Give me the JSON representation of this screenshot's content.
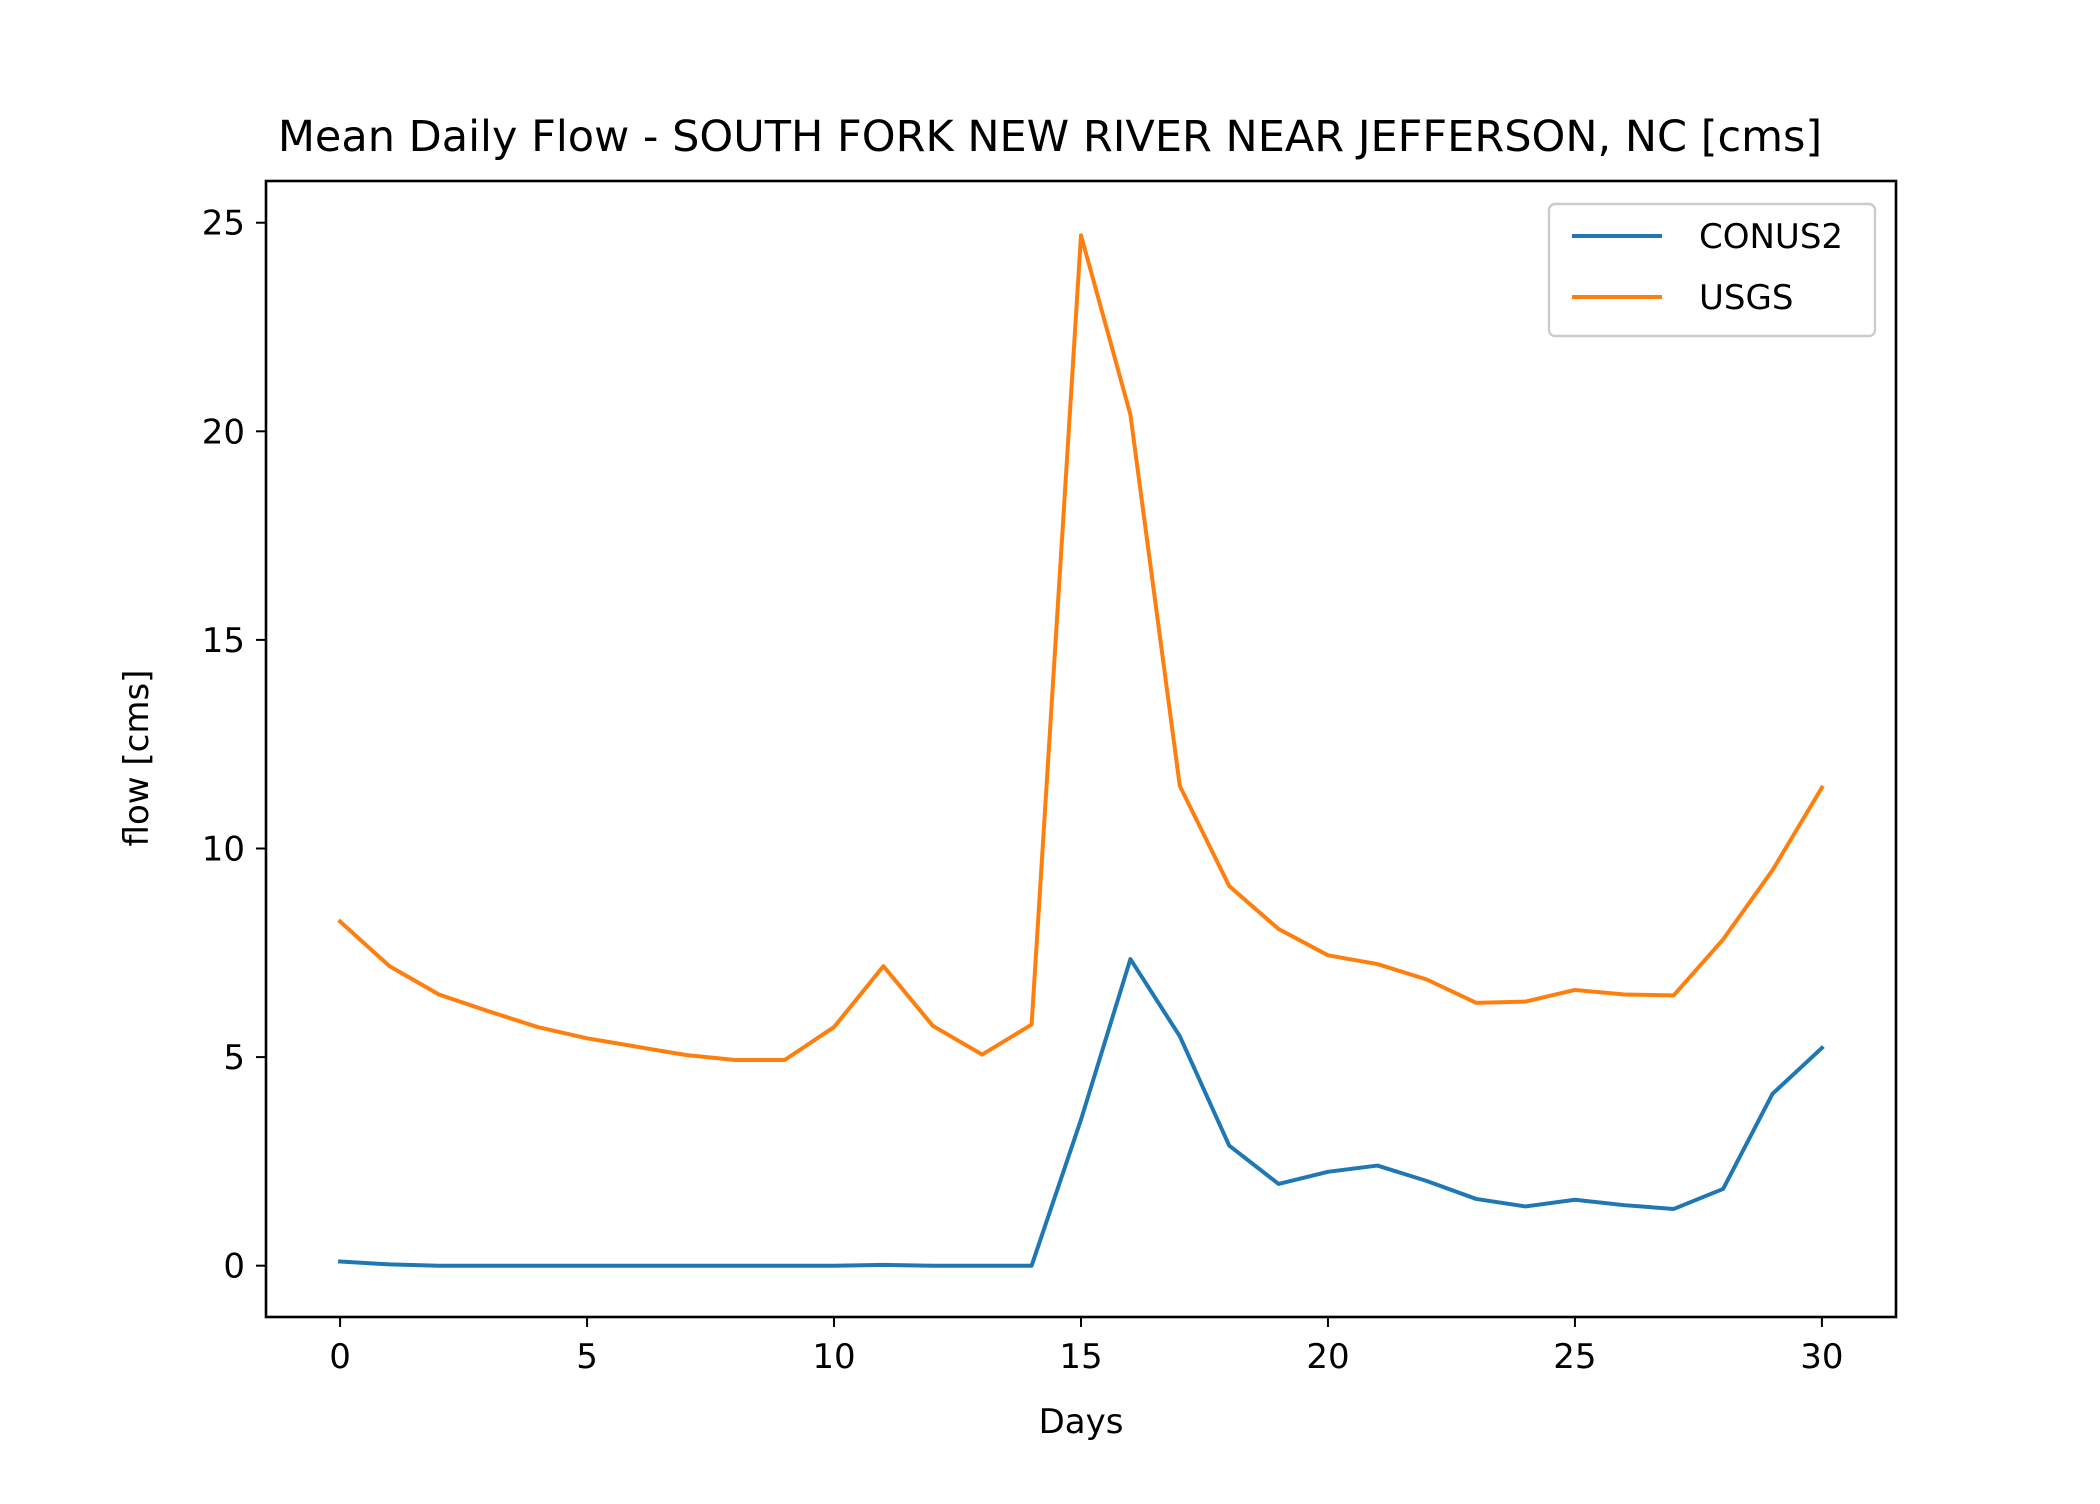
{
  "chart_data": {
    "type": "line",
    "title": "Mean Daily Flow - SOUTH FORK NEW RIVER NEAR JEFFERSON, NC [cms]",
    "xlabel": "Days",
    "ylabel": "flow [cms]",
    "xlim": [
      -1.5,
      31.5
    ],
    "ylim": [
      -1.23,
      26.0
    ],
    "xticks": [
      0,
      5,
      10,
      15,
      20,
      25,
      30
    ],
    "yticks": [
      0,
      5,
      10,
      15,
      20,
      25
    ],
    "grid": false,
    "legend_position": "top-right",
    "x": [
      0,
      1,
      2,
      3,
      4,
      5,
      6,
      7,
      8,
      9,
      10,
      11,
      12,
      13,
      14,
      15,
      16,
      17,
      18,
      19,
      20,
      21,
      22,
      23,
      24,
      25,
      26,
      27,
      28,
      29,
      30
    ],
    "series": [
      {
        "name": "CONUS2",
        "color": "#1f77b4",
        "values": [
          0.1,
          0.03,
          0.0,
          0.0,
          0.0,
          0.0,
          0.0,
          0.0,
          0.0,
          0.0,
          0.0,
          0.02,
          0.0,
          0.0,
          0.0,
          3.5,
          7.35,
          5.5,
          2.88,
          1.96,
          2.25,
          2.4,
          2.03,
          1.6,
          1.42,
          1.58,
          1.45,
          1.36,
          1.84,
          4.12,
          5.22
        ]
      },
      {
        "name": "USGS",
        "color": "#ff7f0e",
        "values": [
          8.25,
          7.18,
          6.5,
          6.1,
          5.72,
          5.45,
          5.25,
          5.05,
          4.93,
          4.93,
          5.72,
          7.18,
          5.75,
          5.06,
          5.78,
          24.7,
          20.4,
          11.5,
          9.1,
          8.07,
          7.44,
          7.23,
          6.86,
          6.3,
          6.33,
          6.61,
          6.5,
          6.48,
          7.82,
          9.48,
          11.46
        ]
      }
    ]
  }
}
